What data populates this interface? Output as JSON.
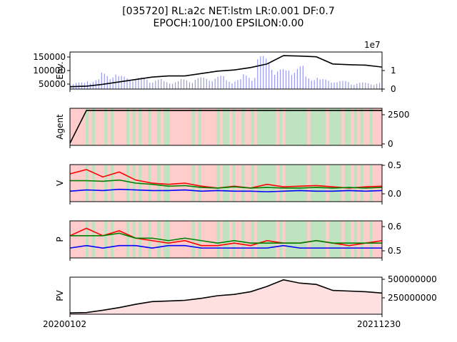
{
  "title": {
    "line1": "[035720] RL:a2c NET:lstm LR:0.001 DF:0.7",
    "line2": "EPOCH:100/100 EPSILON:0.00"
  },
  "x_axis": {
    "start_label": "20200102",
    "end_label": "20211230"
  },
  "colors": {
    "buy": "#ff0000",
    "sell": "#0000ff",
    "hold": "#008000",
    "line": "#000000",
    "buy_bg": "#ffcccc",
    "hold_bg": "#bfe3bf",
    "volume": "#9999ee",
    "pv_fill": "#ffe0e0"
  },
  "chart_data": [
    {
      "panel": "env",
      "type": "line",
      "ylabel": "Env.",
      "yticks": [
        "50000",
        "100000",
        "150000"
      ],
      "ylim": [
        20000,
        175000
      ],
      "secondary_yticks": [
        "0",
        "1"
      ],
      "secondary_multiplier": "1e7",
      "series": [
        {
          "values": [
            30000,
            32000,
            40000,
            50000,
            60000,
            70000,
            75000,
            75000,
            85000,
            95000,
            100000,
            110000,
            125000,
            160000,
            158000,
            155000,
            125000,
            122000,
            120000,
            112000
          ]
        }
      ],
      "volume": [
        0.2,
        0.3,
        0.5,
        0.4,
        0.35,
        0.3,
        0.25,
        0.3,
        0.35,
        0.4,
        0.3,
        0.45,
        1.0,
        0.6,
        0.7,
        0.4,
        0.3,
        0.25,
        0.2,
        0.2
      ]
    },
    {
      "panel": "agent",
      "type": "line",
      "ylabel": "Agent",
      "yticks": [
        "0",
        "2500"
      ],
      "ylim": [
        -200,
        3200
      ],
      "series": [
        {
          "values": [
            0,
            3000,
            3000,
            3000,
            3000,
            3000,
            3000,
            3000,
            3000,
            3000,
            3000,
            3000,
            3000,
            3000,
            3000,
            3000,
            3000,
            3000,
            3000,
            3000
          ]
        }
      ]
    },
    {
      "panel": "value",
      "type": "line",
      "ylabel": "V",
      "yticks": [
        "0.0",
        "0.5"
      ],
      "ylim": [
        -0.1,
        0.5
      ],
      "series": [
        {
          "values": [
            0.35,
            0.42,
            0.3,
            0.38,
            0.25,
            0.2,
            0.18,
            0.2,
            0.15,
            0.12,
            0.15,
            0.12,
            0.18,
            0.14,
            0.15,
            0.16,
            0.14,
            0.12,
            0.14,
            0.15
          ]
        },
        {
          "values": [
            0.07,
            0.09,
            0.08,
            0.1,
            0.09,
            0.08,
            0.08,
            0.09,
            0.07,
            0.08,
            0.07,
            0.07,
            0.06,
            0.07,
            0.08,
            0.07,
            0.07,
            0.08,
            0.07,
            0.08
          ]
        },
        {
          "values": [
            0.24,
            0.24,
            0.23,
            0.25,
            0.2,
            0.18,
            0.15,
            0.16,
            0.13,
            0.12,
            0.14,
            0.12,
            0.13,
            0.12,
            0.12,
            0.13,
            0.12,
            0.13,
            0.12,
            0.13
          ]
        }
      ]
    },
    {
      "panel": "policy",
      "type": "line",
      "ylabel": "P",
      "yticks": [
        "0.5",
        "0.6"
      ],
      "ylim": [
        0.47,
        0.62
      ],
      "series": [
        {
          "values": [
            0.56,
            0.59,
            0.56,
            0.58,
            0.55,
            0.54,
            0.53,
            0.54,
            0.52,
            0.52,
            0.53,
            0.52,
            0.54,
            0.53,
            0.53,
            0.54,
            0.53,
            0.52,
            0.53,
            0.54
          ]
        },
        {
          "values": [
            0.51,
            0.52,
            0.51,
            0.52,
            0.52,
            0.51,
            0.52,
            0.52,
            0.51,
            0.51,
            0.51,
            0.51,
            0.51,
            0.52,
            0.51,
            0.51,
            0.51,
            0.51,
            0.51,
            0.51
          ]
        },
        {
          "values": [
            0.56,
            0.56,
            0.56,
            0.57,
            0.55,
            0.55,
            0.54,
            0.55,
            0.54,
            0.53,
            0.54,
            0.53,
            0.53,
            0.53,
            0.53,
            0.54,
            0.53,
            0.53,
            0.53,
            0.53
          ]
        }
      ]
    },
    {
      "panel": "pv",
      "type": "area",
      "ylabel": "PV",
      "yticks": [
        "250000000",
        "500000000"
      ],
      "ylim": [
        0,
        560000000
      ],
      "series": [
        {
          "values": [
            20000000,
            25000000,
            60000000,
            100000000,
            150000000,
            190000000,
            200000000,
            210000000,
            240000000,
            280000000,
            300000000,
            340000000,
            420000000,
            520000000,
            470000000,
            450000000,
            360000000,
            350000000,
            340000000,
            320000000
          ]
        }
      ]
    }
  ],
  "action_background": [
    "buy",
    "buy",
    "buy",
    "buy",
    "buy",
    "hold",
    "buy",
    "hold",
    "buy",
    "buy",
    "buy",
    "hold",
    "buy",
    "hold",
    "buy",
    "buy",
    "buy",
    "buy",
    "hold",
    "buy",
    "hold",
    "buy",
    "hold",
    "buy",
    "buy",
    "hold",
    "buy",
    "buy",
    "hold",
    "buy",
    "hold",
    "hold",
    "buy",
    "buy",
    "buy",
    "buy",
    "buy",
    "buy",
    "buy",
    "hold",
    "buy",
    "hold",
    "buy",
    "buy",
    "buy",
    "buy",
    "buy",
    "hold",
    "buy",
    "hold",
    "hold",
    "buy",
    "hold",
    "buy",
    "buy",
    "hold",
    "buy",
    "buy",
    "hold",
    "buy",
    "hold",
    "hold",
    "hold",
    "hold",
    "hold",
    "hold",
    "buy",
    "hold",
    "buy",
    "hold",
    "hold",
    "hold",
    "hold",
    "hold",
    "hold",
    "hold",
    "buy",
    "hold",
    "hold",
    "hold",
    "hold",
    "hold",
    "buy",
    "hold",
    "hold",
    "hold",
    "hold",
    "buy",
    "hold",
    "hold",
    "buy",
    "hold",
    "buy",
    "hold",
    "buy",
    "buy",
    "hold",
    "buy",
    "buy",
    "buy"
  ]
}
